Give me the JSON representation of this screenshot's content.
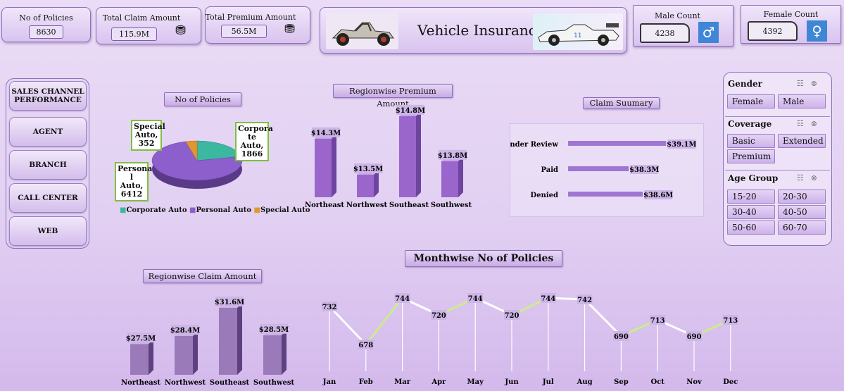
{
  "kpis": {
    "policies": {
      "label": "No of Policies",
      "value": "8630"
    },
    "claim": {
      "label": "Total Claim Amount",
      "value": "115.9M"
    },
    "premium": {
      "label": "Total Premium Amount",
      "value": "56.5M"
    },
    "male": {
      "label": "Male Count",
      "value": "4238"
    },
    "female": {
      "label": "Female Count",
      "value": "4392"
    }
  },
  "header": {
    "title": "Vehicle Insurance"
  },
  "nav": {
    "items": [
      "SALES CHANNEL PERFORMANCE",
      "AGENT",
      "BRANCH",
      "CALL CENTER",
      "WEB"
    ]
  },
  "slicers": {
    "gender": {
      "label": "Gender",
      "options": [
        "Female",
        "Male"
      ]
    },
    "coverage": {
      "label": "Coverage",
      "options": [
        "Basic",
        "Extended",
        "Premium"
      ]
    },
    "age": {
      "label": "Age Group",
      "options": [
        "15-20",
        "20-30",
        "30-40",
        "40-50",
        "50-60",
        "60-70"
      ]
    }
  },
  "colors": {
    "accent": "#9b6fd0",
    "corporate": "#3cb8a0",
    "personal": "#8c5fcc",
    "special": "#e0972e",
    "line": "#cdeb8b"
  },
  "chart_data": [
    {
      "id": "policies_pie",
      "type": "pie",
      "title": "No of Policies",
      "categories": [
        "Corporate Auto",
        "Personal Auto",
        "Special Auto"
      ],
      "values": [
        1866,
        6412,
        352
      ],
      "callouts": [
        "Corpora te Auto, 1866",
        "Persona l Auto, 6412",
        "Special Auto, 352"
      ],
      "legend": "bottom"
    },
    {
      "id": "region_premium",
      "type": "bar",
      "title": "Regionwise Premium Amount",
      "categories": [
        "Northeast",
        "Northwest",
        "Southeast",
        "Southwest"
      ],
      "values": [
        14.3,
        13.5,
        14.8,
        13.8
      ],
      "labels": [
        "$14.3M",
        "$13.5M",
        "$14.8M",
        "$13.8M"
      ],
      "ylim": [
        13.0,
        15.0
      ]
    },
    {
      "id": "claim_summary",
      "type": "bar",
      "orientation": "horizontal",
      "title": "Claim Suumary",
      "categories": [
        "Under Review",
        "Paid",
        "Denied"
      ],
      "values": [
        39.1,
        38.3,
        38.6
      ],
      "labels": [
        "$39.1M",
        "$38.3M",
        "$38.6M"
      ],
      "xlim": [
        37.0,
        39.2
      ]
    },
    {
      "id": "region_claim",
      "type": "bar",
      "title": "Regionwise Claim Amount",
      "categories": [
        "Northeast",
        "Northwest",
        "Southeast",
        "Southwest"
      ],
      "values": [
        27.5,
        28.4,
        31.6,
        28.5
      ],
      "labels": [
        "$27.5M",
        "$28.4M",
        "$31.6M",
        "$28.5M"
      ],
      "ylim": [
        24.0,
        32.0
      ]
    },
    {
      "id": "monthwise_policies",
      "type": "line",
      "title": "Monthwise No of Policies",
      "categories": [
        "Jan",
        "Feb",
        "Mar",
        "Apr",
        "May",
        "Jun",
        "Jul",
        "Aug",
        "Sep",
        "Oct",
        "Nov",
        "Dec"
      ],
      "values": [
        732,
        678,
        744,
        720,
        744,
        720,
        744,
        742,
        690,
        713,
        690,
        713
      ],
      "ylim": [
        640,
        760
      ]
    }
  ]
}
